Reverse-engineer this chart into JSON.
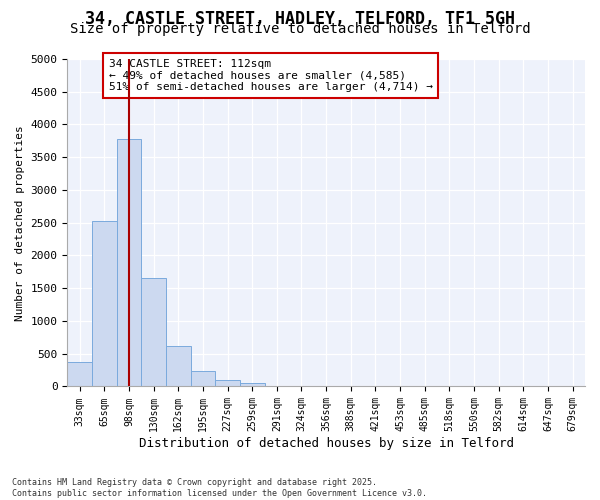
{
  "title_line1": "34, CASTLE STREET, HADLEY, TELFORD, TF1 5GH",
  "title_line2": "Size of property relative to detached houses in Telford",
  "xlabel": "Distribution of detached houses by size in Telford",
  "ylabel": "Number of detached properties",
  "categories": [
    "33sqm",
    "65sqm",
    "98sqm",
    "130sqm",
    "162sqm",
    "195sqm",
    "227sqm",
    "259sqm",
    "291sqm",
    "324sqm",
    "356sqm",
    "388sqm",
    "421sqm",
    "453sqm",
    "485sqm",
    "518sqm",
    "550sqm",
    "582sqm",
    "614sqm",
    "647sqm",
    "679sqm"
  ],
  "values": [
    380,
    2530,
    3780,
    1650,
    615,
    240,
    100,
    55,
    5,
    0,
    0,
    0,
    0,
    0,
    0,
    0,
    0,
    0,
    0,
    0,
    0
  ],
  "bar_color": "#ccd9f0",
  "bar_edge_color": "#7aaadd",
  "vline_x": 2,
  "vline_color": "#aa0000",
  "annotation_text": "34 CASTLE STREET: 112sqm\n← 49% of detached houses are smaller (4,585)\n51% of semi-detached houses are larger (4,714) →",
  "annotation_box_color": "#cc0000",
  "ylim": [
    0,
    5000
  ],
  "yticks": [
    0,
    500,
    1000,
    1500,
    2000,
    2500,
    3000,
    3500,
    4000,
    4500,
    5000
  ],
  "footnote": "Contains HM Land Registry data © Crown copyright and database right 2025.\nContains public sector information licensed under the Open Government Licence v3.0.",
  "bg_color": "#ffffff",
  "plot_bg_color": "#eef2fb",
  "title_fontsize": 12,
  "subtitle_fontsize": 10
}
